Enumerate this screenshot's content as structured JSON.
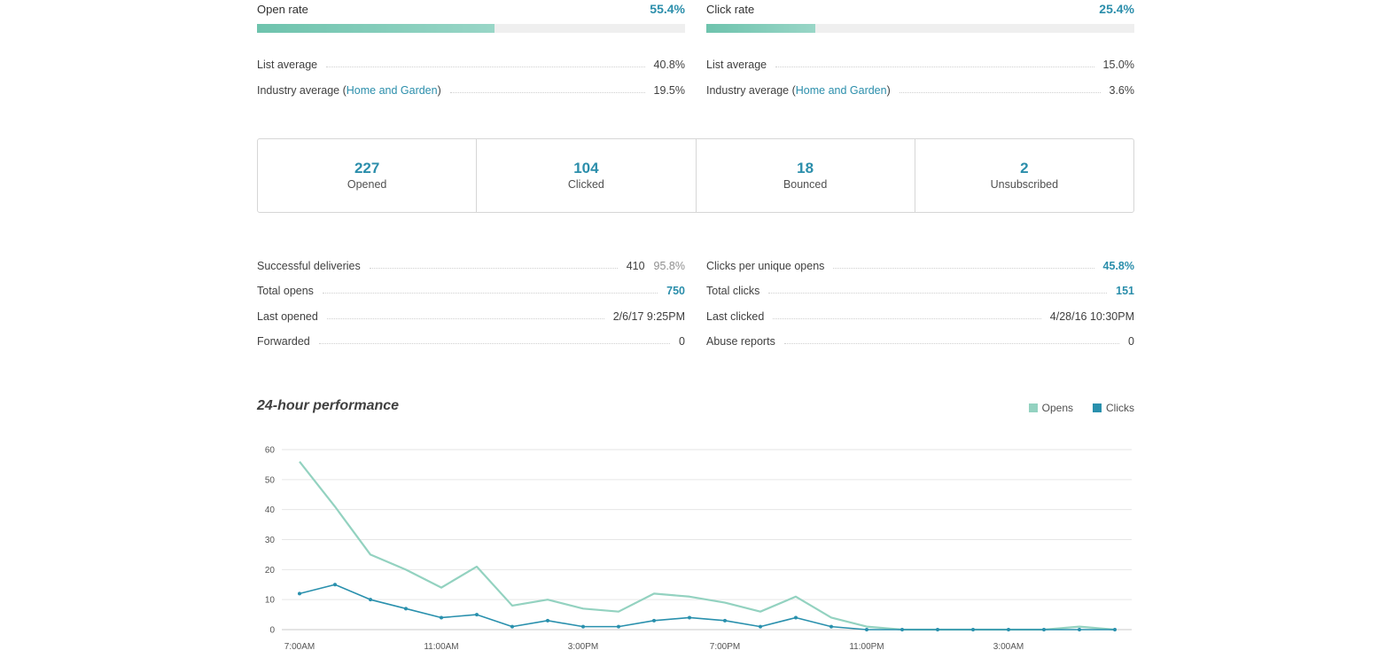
{
  "open_rate": {
    "title": "Open rate",
    "value": "55.4%",
    "fill_percent": 55.4,
    "list_avg_label": "List average",
    "list_avg_value": "40.8%",
    "industry_prefix": "Industry average (",
    "industry_link": "Home and Garden",
    "industry_suffix": ")",
    "industry_value": "19.5%"
  },
  "click_rate": {
    "title": "Click rate",
    "value": "25.4%",
    "fill_percent": 25.4,
    "list_avg_label": "List average",
    "list_avg_value": "15.0%",
    "industry_prefix": "Industry average (",
    "industry_link": "Home and Garden",
    "industry_suffix": ")",
    "industry_value": "3.6%"
  },
  "summary": [
    {
      "num": "227",
      "label": "Opened"
    },
    {
      "num": "104",
      "label": "Clicked"
    },
    {
      "num": "18",
      "label": "Bounced"
    },
    {
      "num": "2",
      "label": "Unsubscribed"
    }
  ],
  "stats_left": {
    "deliveries_label": "Successful deliveries",
    "deliveries_value": "410",
    "deliveries_pct": "95.8%",
    "total_opens_label": "Total opens",
    "total_opens_value": "750",
    "last_opened_label": "Last opened",
    "last_opened_value": "2/6/17 9:25PM",
    "forwarded_label": "Forwarded",
    "forwarded_value": "0"
  },
  "stats_right": {
    "cpuo_label": "Clicks per unique opens",
    "cpuo_value": "45.8%",
    "total_clicks_label": "Total clicks",
    "total_clicks_value": "151",
    "last_clicked_label": "Last clicked",
    "last_clicked_value": "4/28/16 10:30PM",
    "abuse_label": "Abuse reports",
    "abuse_value": "0"
  },
  "performance": {
    "title": "24-hour performance",
    "legend_opens": "Opens",
    "legend_clicks": "Clicks"
  },
  "colors": {
    "accent_blue": "#2b8eab",
    "opens_line": "#93d2c0",
    "clicks_line": "#2990ad"
  },
  "chart_data": {
    "type": "line",
    "x": [
      "7:00AM",
      "8:00AM",
      "9:00AM",
      "10:00AM",
      "11:00AM",
      "12:00PM",
      "1:00PM",
      "2:00PM",
      "3:00PM",
      "4:00PM",
      "5:00PM",
      "6:00PM",
      "7:00PM",
      "8:00PM",
      "9:00PM",
      "10:00PM",
      "11:00PM",
      "12:00AM",
      "1:00AM",
      "2:00AM",
      "3:00AM",
      "4:00AM",
      "5:00AM",
      "6:00AM"
    ],
    "tick_labels": [
      "7:00AM",
      "11:00AM",
      "3:00PM",
      "7:00PM",
      "11:00PM",
      "3:00AM"
    ],
    "series": [
      {
        "name": "Opens",
        "values": [
          56,
          41,
          25,
          20,
          14,
          21,
          8,
          10,
          7,
          6,
          12,
          11,
          9,
          6,
          11,
          4,
          1,
          0,
          0,
          0,
          0,
          0,
          1,
          0
        ]
      },
      {
        "name": "Clicks",
        "values": [
          12,
          15,
          10,
          7,
          4,
          5,
          1,
          3,
          1,
          1,
          3,
          4,
          3,
          1,
          4,
          1,
          0,
          0,
          0,
          0,
          0,
          0,
          0,
          0
        ]
      }
    ],
    "ylim": [
      0,
      60
    ],
    "yticks": [
      0,
      10,
      20,
      30,
      40,
      50,
      60
    ],
    "grid": true,
    "legend": "top-right"
  }
}
